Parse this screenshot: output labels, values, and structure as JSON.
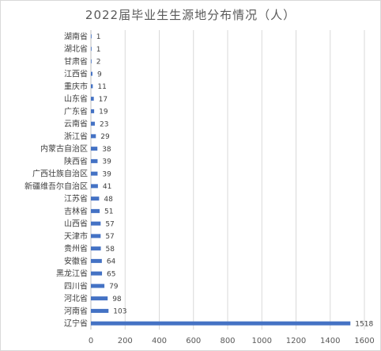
{
  "chart_data": {
    "type": "bar",
    "orientation": "horizontal",
    "title": "2022届毕业生生源地分布情况（人）",
    "categories": [
      "湖南省",
      "湖北省",
      "甘肃省",
      "江西省",
      "重庆市",
      "山东省",
      "广东省",
      "云南省",
      "浙江省",
      "内蒙古自治区",
      "陕西省",
      "广西壮族自治区",
      "新疆维吾尔自治区",
      "江苏省",
      "吉林省",
      "山西省",
      "天津市",
      "贵州省",
      "安徽省",
      "黑龙江省",
      "四川省",
      "河北省",
      "河南省",
      "辽宁省"
    ],
    "values": [
      1,
      1,
      2,
      9,
      11,
      17,
      19,
      23,
      29,
      38,
      39,
      39,
      41,
      48,
      51,
      57,
      57,
      58,
      64,
      65,
      79,
      98,
      103,
      1518
    ],
    "xlim": [
      0,
      1600
    ],
    "xticks": [
      0,
      200,
      400,
      600,
      800,
      1000,
      1200,
      1400,
      1600
    ],
    "grid": true,
    "legend": "none",
    "bar_color": "#4472c4"
  }
}
